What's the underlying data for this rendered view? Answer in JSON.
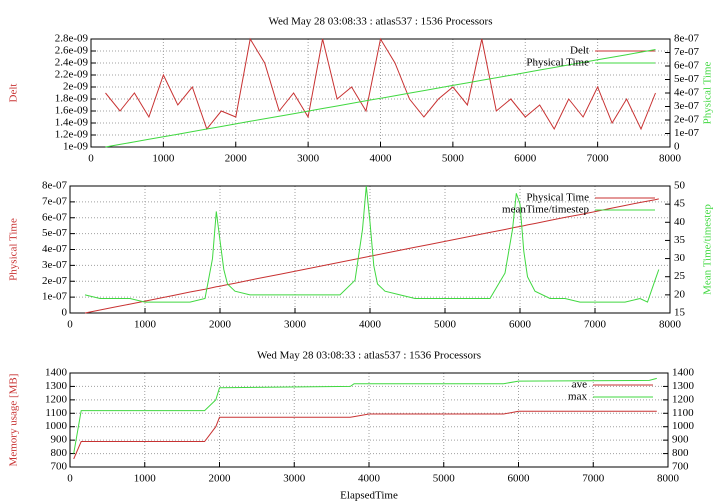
{
  "chart_data": [
    {
      "type": "line",
      "title": "Wed May 28 03:08:33 : atlas537 : 1536 Processors",
      "ylabel": "Delt",
      "y2label": "Physical Time",
      "grid": true,
      "legend": "top right",
      "x": [
        200,
        400,
        600,
        800,
        1000,
        1200,
        1400,
        1600,
        1800,
        2000,
        2200,
        2400,
        2600,
        2800,
        3000,
        3200,
        3400,
        3600,
        3800,
        4000,
        4200,
        4400,
        4600,
        4800,
        5000,
        5200,
        5400,
        5600,
        5800,
        6000,
        6200,
        6400,
        6600,
        6800,
        7000,
        7200,
        7400,
        7600,
        7800
      ],
      "series": [
        {
          "name": "Delt",
          "color": "#c83232",
          "values": [
            1.9e-09,
            1.6e-09,
            1.9e-09,
            1.5e-09,
            2.2e-09,
            1.7e-09,
            2e-09,
            1.3e-09,
            1.6e-09,
            1.5e-09,
            2.8e-09,
            2.4e-09,
            1.6e-09,
            1.9e-09,
            1.5e-09,
            2.8e-09,
            1.8e-09,
            2e-09,
            1.6e-09,
            2.8e-09,
            2.4e-09,
            1.8e-09,
            1.5e-09,
            1.8e-09,
            2e-09,
            1.7e-09,
            2.8e-09,
            1.6e-09,
            1.8e-09,
            1.5e-09,
            1.7e-09,
            1.3e-09,
            1.8e-09,
            1.5e-09,
            2e-09,
            1.4e-09,
            1.8e-09,
            1.3e-09,
            1.9e-09
          ]
        },
        {
          "name": "Physical Time",
          "color": "#40d840",
          "axis": "y2",
          "values": [
            0,
            1.9e-08,
            3.8e-08,
            5.7e-08,
            7.6e-08,
            9.5e-08,
            1.14e-07,
            1.33e-07,
            1.52e-07,
            1.71e-07,
            1.9e-07,
            2.09e-07,
            2.28e-07,
            2.47e-07,
            2.66e-07,
            2.85e-07,
            3.04e-07,
            3.23e-07,
            3.42e-07,
            3.61e-07,
            3.8e-07,
            3.99e-07,
            4.18e-07,
            4.37e-07,
            4.56e-07,
            4.75e-07,
            4.94e-07,
            5.13e-07,
            5.32e-07,
            5.51e-07,
            5.7e-07,
            5.89e-07,
            6.08e-07,
            6.27e-07,
            6.46e-07,
            6.65e-07,
            6.84e-07,
            7.03e-07,
            7.22e-07
          ]
        }
      ],
      "xlim": [
        0,
        8000
      ],
      "xticks": [
        0,
        1000,
        2000,
        3000,
        4000,
        5000,
        6000,
        7000,
        8000
      ],
      "ylim": [
        1e-09,
        2.8e-09
      ],
      "yticks": [
        {
          "value": 1e-09,
          "label": "1e-09"
        },
        {
          "value": 1.2e-09,
          "label": "1.2e-09"
        },
        {
          "value": 1.4e-09,
          "label": "1.4e-09"
        },
        {
          "value": 1.6e-09,
          "label": "1.6e-09"
        },
        {
          "value": 1.8e-09,
          "label": "1.8e-09"
        },
        {
          "value": 2e-09,
          "label": "2e-09"
        },
        {
          "value": 2.2e-09,
          "label": "2.2e-09"
        },
        {
          "value": 2.4e-09,
          "label": "2.4e-09"
        },
        {
          "value": 2.6e-09,
          "label": "2.6e-09"
        },
        {
          "value": 2.8e-09,
          "label": "2.8e-09"
        }
      ],
      "y2lim": [
        0,
        8e-07
      ],
      "y2ticks": [
        0,
        {
          "value": 1e-07,
          "label": "1e-07"
        },
        {
          "value": 2e-07,
          "label": "2e-07"
        },
        {
          "value": 3e-07,
          "label": "3e-07"
        },
        {
          "value": 4e-07,
          "label": "4e-07"
        },
        {
          "value": 5e-07,
          "label": "5e-07"
        },
        {
          "value": 6e-07,
          "label": "6e-07"
        },
        {
          "value": 7e-07,
          "label": "7e-07"
        },
        {
          "value": 8e-07,
          "label": "8e-07"
        }
      ]
    },
    {
      "type": "line",
      "ylabel": "Physical Time",
      "y2label": "Mean Time/timestep",
      "grid": true,
      "legend": "top right",
      "x": [
        200,
        400,
        600,
        800,
        1000,
        1200,
        1400,
        1600,
        1800,
        1900,
        1950,
        2000,
        2050,
        2100,
        2200,
        2400,
        2600,
        2800,
        3000,
        3200,
        3400,
        3600,
        3800,
        3900,
        3950,
        4000,
        4050,
        4100,
        4200,
        4400,
        4600,
        4800,
        5000,
        5200,
        5400,
        5600,
        5800,
        5900,
        5950,
        6000,
        6050,
        6100,
        6200,
        6400,
        6600,
        6800,
        7000,
        7200,
        7400,
        7600,
        7700,
        7800,
        7850
      ],
      "series": [
        {
          "name": "Physical Time",
          "color": "#c83232",
          "values": [
            0,
            1.9e-08,
            3.8e-08,
            5.6e-08,
            7.5e-08,
            9.4e-08,
            1.13e-07,
            1.32e-07,
            1.5e-07,
            1.6e-07,
            1.65e-07,
            1.69e-07,
            1.74e-07,
            1.79e-07,
            1.88e-07,
            2.07e-07,
            2.26e-07,
            2.44e-07,
            2.63e-07,
            2.82e-07,
            3.01e-07,
            3.2e-07,
            3.38e-07,
            3.48e-07,
            3.53e-07,
            3.57e-07,
            3.62e-07,
            3.67e-07,
            3.76e-07,
            3.95e-07,
            4.14e-07,
            4.32e-07,
            4.51e-07,
            4.7e-07,
            4.89e-07,
            5.08e-07,
            5.26e-07,
            5.36e-07,
            5.41e-07,
            5.45e-07,
            5.5e-07,
            5.55e-07,
            5.64e-07,
            5.83e-07,
            6.02e-07,
            6.2e-07,
            6.39e-07,
            6.58e-07,
            6.77e-07,
            6.96e-07,
            7.05e-07,
            7.14e-07,
            7.19e-07
          ]
        },
        {
          "name": "meanTime/timestep",
          "color": "#40d840",
          "axis": "y2",
          "values": [
            20,
            19,
            19,
            19,
            18,
            18,
            18,
            18,
            19,
            30,
            43,
            35,
            27,
            23,
            21,
            20,
            20,
            20,
            20,
            20,
            20,
            20,
            24,
            38,
            50,
            40,
            28,
            23,
            21,
            20,
            19,
            19,
            19,
            19,
            19,
            19,
            26,
            38,
            48,
            45,
            32,
            25,
            21,
            19,
            19,
            18,
            18,
            18,
            18,
            19,
            18,
            24,
            27
          ]
        }
      ],
      "xlim": [
        0,
        8000
      ],
      "xticks": [
        0,
        1000,
        2000,
        3000,
        4000,
        5000,
        6000,
        7000,
        8000
      ],
      "ylim": [
        0,
        8e-07
      ],
      "yticks": [
        0,
        {
          "value": 1e-07,
          "label": "1e-07"
        },
        {
          "value": 2e-07,
          "label": "2e-07"
        },
        {
          "value": 3e-07,
          "label": "3e-07"
        },
        {
          "value": 4e-07,
          "label": "4e-07"
        },
        {
          "value": 5e-07,
          "label": "5e-07"
        },
        {
          "value": 6e-07,
          "label": "6e-07"
        },
        {
          "value": 7e-07,
          "label": "7e-07"
        },
        {
          "value": 8e-07,
          "label": "8e-07"
        }
      ],
      "y2lim": [
        15,
        50
      ],
      "y2ticks": [
        15,
        20,
        25,
        30,
        35,
        40,
        45,
        50
      ]
    },
    {
      "type": "line",
      "title": "Wed May 28 03:08:33 : atlas537 : 1536 Processors",
      "xlabel": "ElapsedTime",
      "ylabel": "Memory usage [MB]",
      "grid": true,
      "legend": "top right",
      "x": [
        50,
        150,
        1800,
        1950,
        2000,
        3750,
        3800,
        4000,
        5800,
        6000,
        7750,
        7850
      ],
      "series": [
        {
          "name": "ave",
          "color": "#c83232",
          "values": [
            760,
            890,
            890,
            1000,
            1070,
            1070,
            1075,
            1095,
            1095,
            1115,
            1115,
            1115
          ]
        },
        {
          "name": "max",
          "color": "#40d840",
          "values": [
            800,
            1120,
            1120,
            1200,
            1290,
            1300,
            1320,
            1320,
            1320,
            1340,
            1345,
            1360
          ]
        }
      ],
      "xlim": [
        0,
        8000
      ],
      "xticks": [
        0,
        1000,
        2000,
        3000,
        4000,
        5000,
        6000,
        7000,
        8000
      ],
      "ylim": [
        700,
        1400
      ],
      "yticks": [
        700,
        800,
        900,
        1000,
        1100,
        1200,
        1300,
        1400
      ],
      "y2lim": [
        700,
        1400
      ],
      "y2ticks": [
        700,
        800,
        900,
        1000,
        1100,
        1200,
        1300,
        1400
      ]
    }
  ]
}
